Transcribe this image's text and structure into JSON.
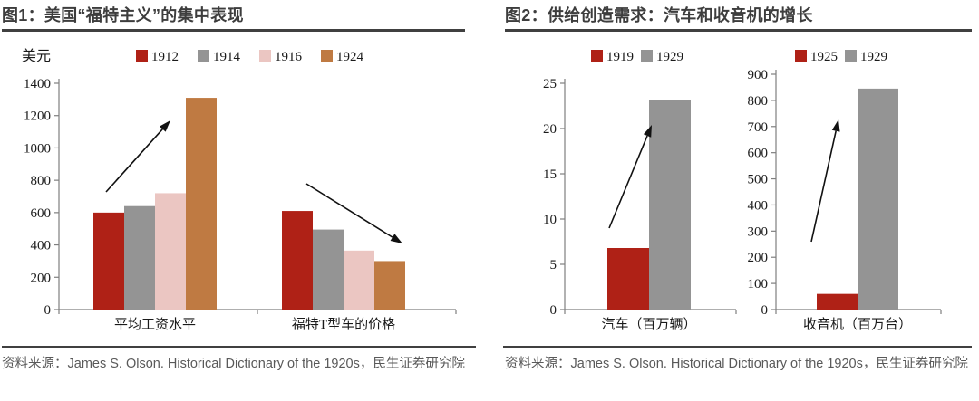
{
  "panels": [
    {
      "title": "图1：美国“福特主义”的集中表现",
      "source": "资料来源：James S. Olson. Historical Dictionary of the 1920s，民生证券研究院"
    },
    {
      "title": "图2：供给创造需求：汽车和收音机的增长",
      "source": "资料来源：James S. Olson. Historical Dictionary of the 1920s，民生证券研究院"
    }
  ],
  "colors": {
    "red": "#af2116",
    "gray": "#949494",
    "pink": "#ebc6c2",
    "brown": "#bf7a42",
    "axis": "#7f7f7f",
    "arrow": "#111111",
    "title_text": "#3d3d3d",
    "rule": "#404040",
    "source_text": "#595959"
  },
  "chart_data": [
    {
      "id": "fordism",
      "type": "bar",
      "title": "美国“福特主义”的集中表现",
      "ylabel": "美元",
      "xlabel": "",
      "categories": [
        "平均工资水平",
        "福特T型车的价格"
      ],
      "series": [
        {
          "name": "1912",
          "color": "#af2116",
          "values": [
            600,
            610
          ]
        },
        {
          "name": "1914",
          "color": "#949494",
          "values": [
            640,
            495
          ]
        },
        {
          "name": "1916",
          "color": "#ebc6c2",
          "values": [
            720,
            365
          ]
        },
        {
          "name": "1924",
          "color": "#bf7a42",
          "values": [
            1310,
            300
          ]
        }
      ],
      "ylim": [
        0,
        1400
      ],
      "ytick_step": 200,
      "grid": false,
      "legend_position": "top",
      "annotations": [
        {
          "type": "arrow",
          "direction": "up",
          "over_category": "平均工资水平"
        },
        {
          "type": "arrow",
          "direction": "down",
          "over_category": "福特T型车的价格"
        }
      ]
    },
    {
      "id": "cars",
      "type": "bar",
      "title": "汽车的增长",
      "ylabel": "",
      "xlabel": "",
      "categories": [
        "汽车（百万辆）"
      ],
      "series": [
        {
          "name": "1919",
          "color": "#af2116",
          "values": [
            6.8
          ]
        },
        {
          "name": "1929",
          "color": "#949494",
          "values": [
            23.1
          ]
        }
      ],
      "ylim": [
        0,
        25
      ],
      "ytick_step": 5,
      "grid": false,
      "legend_position": "top",
      "annotations": [
        {
          "type": "arrow",
          "direction": "up",
          "over_category": "汽车（百万辆）"
        }
      ]
    },
    {
      "id": "radios",
      "type": "bar",
      "title": "收音机的增长",
      "ylabel": "",
      "xlabel": "",
      "categories": [
        "收音机（百万台）"
      ],
      "series": [
        {
          "name": "1925",
          "color": "#af2116",
          "values": [
            60
          ]
        },
        {
          "name": "1929",
          "color": "#949494",
          "values": [
            845
          ]
        }
      ],
      "ylim": [
        0,
        900
      ],
      "ytick_step": 100,
      "grid": false,
      "legend_position": "top",
      "annotations": [
        {
          "type": "arrow",
          "direction": "up",
          "over_category": "收音机（百万台）"
        }
      ]
    }
  ]
}
